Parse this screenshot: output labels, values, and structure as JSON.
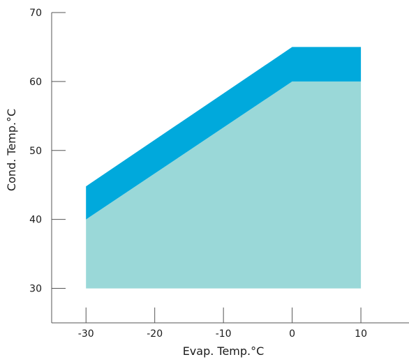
{
  "chart_data": {
    "type": "area",
    "title": "",
    "xlabel": "Evap. Temp.°C",
    "ylabel": "Cond. Temp.°C",
    "xlim": [
      -35,
      17
    ],
    "ylim": [
      25,
      70
    ],
    "xticks": [
      -30,
      -20,
      -10,
      0,
      10
    ],
    "yticks": [
      30,
      40,
      50,
      60,
      70
    ],
    "series": [
      {
        "color": "#9ad8d8",
        "x": [
          -30,
          0,
          10,
          10,
          -30
        ],
        "y": [
          40,
          60,
          60,
          30,
          30
        ]
      },
      {
        "color": "#00a9dc",
        "x": [
          -30,
          0,
          10,
          10,
          0,
          -30
        ],
        "y": [
          44.8,
          65,
          65,
          60,
          60,
          40
        ]
      }
    ],
    "grid": false,
    "legend": "none"
  }
}
